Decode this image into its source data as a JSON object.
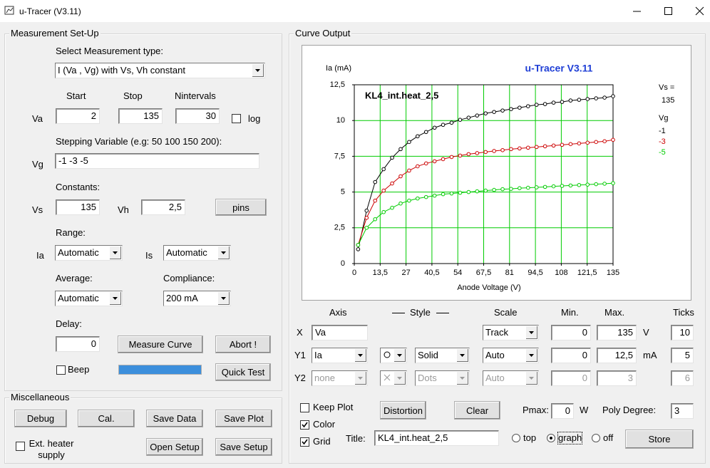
{
  "window": {
    "title": "u-Tracer (V3.11)"
  },
  "setup": {
    "title": "Measurement Set-Up",
    "type_label": "Select Measurement type:",
    "type": "I (Va , Vg) with Vs, Vh constant",
    "start_label": "Start",
    "stop_label": "Stop",
    "nintervals_label": "Nintervals",
    "va_label": "Va",
    "va_start": "2",
    "va_stop": "135",
    "va_nintervals": "30",
    "log": {
      "label": "log",
      "checked": false
    },
    "stepping_label": "Stepping Variable (e.g: 50 100 150 200):",
    "vg_label": "Vg",
    "vg": "-1 -3 -5",
    "constants_label": "Constants:",
    "vs_label": "Vs",
    "vs": "135",
    "vh_label": "Vh",
    "vh": "2,5",
    "pins": "pins",
    "range_label": "Range:",
    "ia_label": "Ia",
    "ia_range": "Automatic",
    "is_label": "Is",
    "is_range": "Automatic",
    "average_label": "Average:",
    "average": "Automatic",
    "compliance_label": "Compliance:",
    "compliance": "200 mA",
    "delay_label": "Delay:",
    "delay": "0",
    "measure": "Measure Curve",
    "abort": "Abort !",
    "beep": {
      "label": "Beep",
      "checked": false
    },
    "quick_test": "Quick Test"
  },
  "misc": {
    "title": "Miscellaneous",
    "debug": "Debug",
    "cal": "Cal.",
    "save_data": "Save Data",
    "save_plot": "Save Plot",
    "ext_heater": {
      "label": "Ext. heater supply",
      "checked": false
    },
    "open_setup": "Open Setup",
    "save_setup": "Save Setup"
  },
  "output": {
    "title": "Curve Output",
    "headers": [
      "Axis",
      "Style",
      "Scale",
      "Min.",
      "Max.",
      "Ticks"
    ],
    "axes": [
      {
        "name": "X",
        "axis": "Va",
        "scale": "Track",
        "min": "0",
        "max": "135",
        "unit": "V",
        "ticks": "10",
        "enabled": true
      },
      {
        "name": "Y1",
        "axis": "Ia",
        "line_style": "Solid",
        "scale": "Auto",
        "min": "0",
        "max": "12,5",
        "unit": "mA",
        "ticks": "5",
        "enabled": true
      },
      {
        "name": "Y2",
        "axis": "none",
        "line_style": "Dots",
        "scale": "Auto",
        "min": "0",
        "max": "3",
        "ticks": "6",
        "enabled": false
      }
    ],
    "keep_plot": {
      "label": "Keep Plot",
      "checked": false
    },
    "color": {
      "label": "Color",
      "checked": true
    },
    "grid": {
      "label": "Grid",
      "checked": true
    },
    "distortion": "Distortion",
    "clear": "Clear",
    "pmax_label": "Pmax:",
    "pmax": "0",
    "pmax_unit": "W",
    "poly_label": "Poly Degree:",
    "poly": "3",
    "title_label": "Title:",
    "title_value": "KL4_int.heat_2,5",
    "title_position": {
      "options": [
        "top",
        "graph",
        "off"
      ],
      "selected": 1
    },
    "store": "Store"
  },
  "chart_data": {
    "type": "line",
    "title": "KL4_int.heat_2,5",
    "subtitle": "u-Tracer V3.11",
    "x_label": "Anode Voltage (V)",
    "y_label": "Ia (mA)",
    "vs_label": "Vs =",
    "vs_value": "135",
    "legend_title": "Vg",
    "x": [
      2,
      6.43,
      10.87,
      15.3,
      19.73,
      24.17,
      28.6,
      33.03,
      37.47,
      41.9,
      46.33,
      50.77,
      55.2,
      59.63,
      64.07,
      68.5,
      72.93,
      77.37,
      81.8,
      86.23,
      90.67,
      95.1,
      99.53,
      103.97,
      108.4,
      112.83,
      117.27,
      121.7,
      126.13,
      130.57,
      135
    ],
    "series": [
      {
        "name": "-1",
        "color": "#000000",
        "values": [
          1.0,
          3.7,
          5.7,
          6.6,
          7.4,
          8.0,
          8.5,
          8.9,
          9.2,
          9.5,
          9.7,
          9.85,
          10.05,
          10.2,
          10.35,
          10.5,
          10.6,
          10.7,
          10.8,
          10.9,
          11.0,
          11.1,
          11.15,
          11.25,
          11.3,
          11.4,
          11.45,
          11.5,
          11.55,
          11.6,
          11.7
        ]
      },
      {
        "name": "-3",
        "color": "#cc0000",
        "values": [
          1.3,
          3.2,
          4.4,
          5.1,
          5.6,
          6.1,
          6.5,
          6.8,
          7.0,
          7.15,
          7.3,
          7.45,
          7.55,
          7.65,
          7.72,
          7.8,
          7.87,
          7.93,
          8.0,
          8.05,
          8.1,
          8.15,
          8.2,
          8.25,
          8.3,
          8.35,
          8.4,
          8.45,
          8.5,
          8.55,
          8.65
        ]
      },
      {
        "name": "-5",
        "color": "#00cc00",
        "values": [
          1.3,
          2.5,
          3.1,
          3.6,
          3.9,
          4.2,
          4.4,
          4.55,
          4.65,
          4.75,
          4.85,
          4.9,
          4.95,
          5.0,
          5.05,
          5.1,
          5.15,
          5.2,
          5.22,
          5.27,
          5.3,
          5.33,
          5.36,
          5.4,
          5.43,
          5.46,
          5.49,
          5.52,
          5.55,
          5.58,
          5.62
        ]
      }
    ],
    "xlim": [
      0,
      135
    ],
    "ylim": [
      0,
      12.5
    ],
    "xticks": [
      0,
      {
        "value": 13.5,
        "label": "13,5"
      },
      27,
      {
        "value": 40.5,
        "label": "40,5"
      },
      54,
      {
        "value": 67.5,
        "label": "67,5"
      },
      81,
      {
        "value": 94.5,
        "label": "94,5"
      },
      108,
      {
        "value": 121.5,
        "label": "121,5"
      },
      135
    ],
    "yticks": [
      0,
      {
        "value": 2.5,
        "label": "2,5"
      },
      5,
      {
        "value": 7.5,
        "label": "7,5"
      },
      10,
      {
        "value": 12.5,
        "label": "12,5"
      }
    ],
    "grid": true,
    "grid_color": "#00cc00"
  }
}
